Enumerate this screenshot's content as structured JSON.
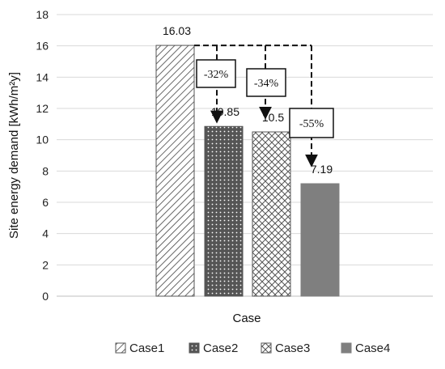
{
  "chart_data": {
    "type": "bar",
    "xlabel": "Case",
    "ylabel": "Site energy demand [kWh/m²y]",
    "ylim": [
      0,
      18
    ],
    "ytick_step": 2,
    "grid": "horizontal",
    "legend_position": "bottom",
    "categories": [
      "Case1",
      "Case2",
      "Case3",
      "Case4"
    ],
    "values": [
      16.03,
      10.85,
      10.5,
      7.19
    ],
    "data_labels": [
      "16.03",
      "10.85",
      "10.5",
      "7.19"
    ],
    "bar_styles": [
      "diagonal-hatch",
      "dotted-dark",
      "crosshatch",
      "solid-gray"
    ],
    "annotations": [
      {
        "text": "-32%",
        "from": "Case1",
        "to": "Case2"
      },
      {
        "text": "-34%",
        "from": "Case1",
        "to": "Case3"
      },
      {
        "text": "-55%",
        "from": "Case1",
        "to": "Case4"
      }
    ],
    "colors": {
      "bar_edge": "#555555",
      "dark_fill": "#555555",
      "solid_fill": "#7f7f7f",
      "grid": "#d9d9d9"
    }
  }
}
